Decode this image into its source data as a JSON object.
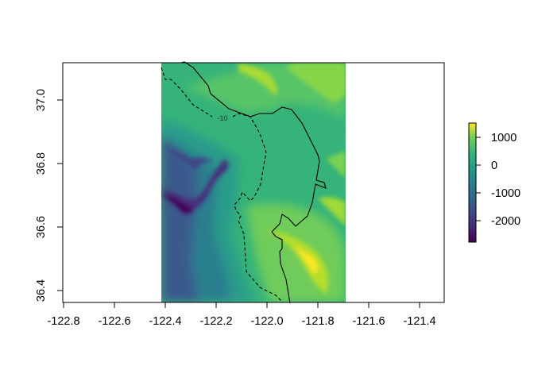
{
  "chart_data": {
    "type": "heatmap",
    "title": "",
    "xlabel": "",
    "ylabel": "",
    "xlim": [
      -122.803,
      -121.303
    ],
    "ylim": [
      36.3625,
      37.117
    ],
    "raster_extent": {
      "lon": [
        -122.415,
        -121.69
      ],
      "lat": [
        36.3625,
        37.117
      ]
    },
    "x_ticks": [
      "-122.8",
      "-122.6",
      "-122.4",
      "-122.2",
      "-122.0",
      "-121.8",
      "-121.6",
      "-121.4"
    ],
    "y_ticks": [
      "36.4",
      "36.6",
      "36.8",
      "37.0"
    ],
    "colorscale": "viridis",
    "value_range": [
      -2770,
      1510
    ],
    "legend": {
      "placement": "right",
      "ticks": [
        "1000",
        "0",
        "-1000",
        "-2000"
      ]
    },
    "contours": [
      {
        "label": "-10",
        "style": "dashed"
      },
      {
        "label": "",
        "style": "solid",
        "name_hint": "coastline"
      }
    ],
    "colors": {
      "deep": "#440154",
      "mid": "#21918c",
      "zero": "#35b779",
      "high": "#fde725"
    }
  }
}
